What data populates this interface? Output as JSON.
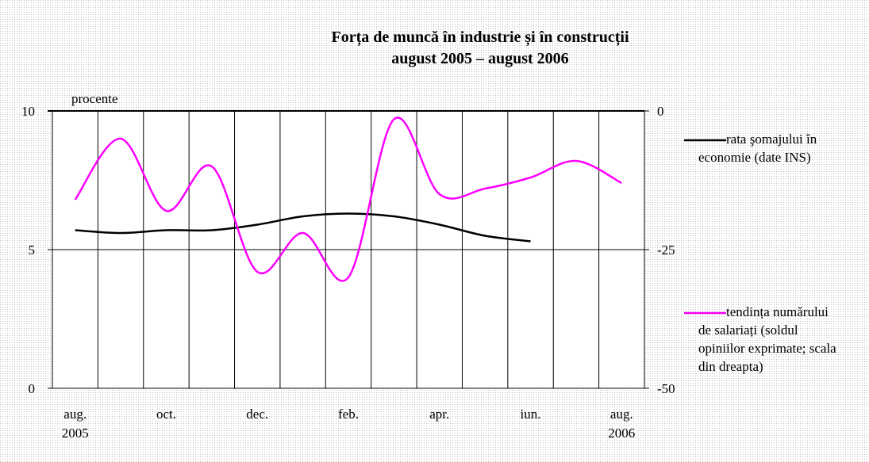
{
  "chart_data": {
    "type": "line",
    "title": "Forța de muncă în industrie și în construcții",
    "subtitle": "august 2005 – august 2006",
    "y_label": "procente",
    "categories": [
      "aug.\n2005",
      null,
      "oct.",
      null,
      "dec.",
      null,
      "feb.",
      null,
      "apr.",
      null,
      "iun.",
      null,
      "aug.\n2006"
    ],
    "ylim": [
      0,
      10
    ],
    "yticks": [
      0,
      5,
      10
    ],
    "y2lim": [
      -50,
      0
    ],
    "y2ticks": [
      0,
      -25,
      -50
    ],
    "grid": true,
    "legend": "right",
    "series": [
      {
        "name": "rata şomajului în economie (date INS)",
        "color": "#000000",
        "values": [
          5.7,
          5.6,
          5.7,
          5.7,
          5.9,
          6.2,
          6.3,
          6.2,
          5.9,
          5.5,
          5.3,
          null,
          null
        ]
      },
      {
        "name": "tendința numărului de salariați (soldul opiniilor exprimate; scala din dreapta)",
        "color": "#ff00ff",
        "axis": "y2",
        "values": [
          -16,
          -5,
          -18,
          -10,
          -29,
          -22,
          -30,
          -1.5,
          -15,
          -14,
          -12,
          -9,
          -13
        ]
      }
    ]
  }
}
